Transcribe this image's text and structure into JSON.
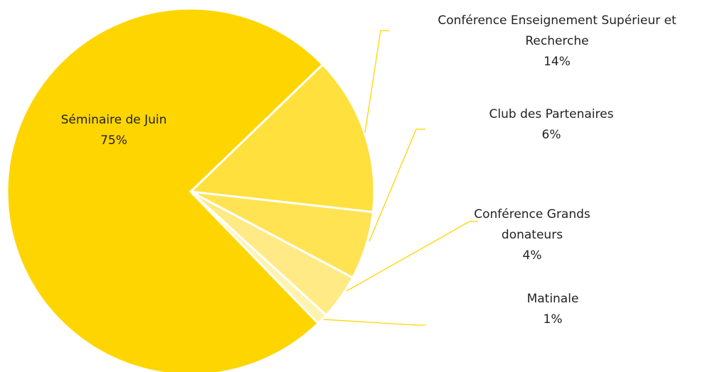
{
  "chart_data": {
    "type": "pie",
    "categories": [
      "Séminaire de Juin",
      "Conférence Enseignement Supérieur et Recherche",
      "Club des Partenaires",
      "Conférence Grands donateurs",
      "Matinale"
    ],
    "values": [
      75,
      14,
      6,
      4,
      1
    ],
    "value_labels": [
      "75%",
      "14%",
      "6%",
      "4%",
      "1%"
    ],
    "colors": [
      "#FFD500",
      "#FFE03D",
      "#FFE352",
      "#FFEA85",
      "#FFF3B0"
    ]
  }
}
